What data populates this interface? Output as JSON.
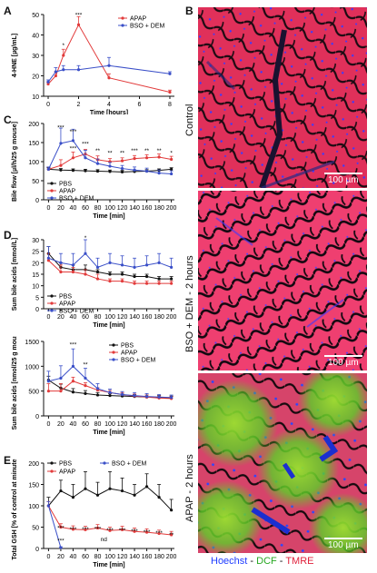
{
  "letters": {
    "A": "A",
    "B": "B",
    "C": "C",
    "D": "D",
    "E": "E"
  },
  "colors": {
    "pbs": "#111111",
    "apap": "#e23b3b",
    "bso": "#3a4fc8",
    "hoechst": "#1f3cff",
    "dcf": "#37c832",
    "tmre": "#ff2a4a"
  },
  "panel_b": {
    "labels": [
      "Control",
      "BSO + DEM - 2 hours",
      "APAP - 2 hours"
    ],
    "scale": "100 µm",
    "legend": {
      "hoechst": "Hoechst",
      "sep1": " - ",
      "dcf": "DCF",
      "sep2": " - ",
      "tmre": "TMRE"
    }
  },
  "chart_data": [
    {
      "id": "A",
      "type": "line",
      "xlabel": "Time [hours]",
      "ylabel": "4-HNE [µg/mL]",
      "xticks": [
        0,
        2,
        4,
        6,
        8
      ],
      "yticks": [
        10,
        20,
        30,
        40,
        50
      ],
      "xlim": [
        -0.3,
        8.3
      ],
      "ylim": [
        10,
        50
      ],
      "series": [
        {
          "name": "APAP",
          "color": "#e23b3b",
          "x": [
            0,
            0.5,
            1,
            2,
            4,
            8
          ],
          "y": [
            16,
            20,
            30,
            45,
            19,
            12
          ],
          "err": [
            1,
            2,
            3,
            4,
            2,
            1
          ]
        },
        {
          "name": "BSO + DEM",
          "color": "#3a4fc8",
          "x": [
            0,
            0.5,
            1,
            2,
            4,
            8
          ],
          "y": [
            17,
            22,
            23,
            23,
            25,
            21
          ],
          "err": [
            1,
            2,
            2,
            2,
            4,
            1
          ]
        }
      ],
      "annotations": [
        {
          "x": 2,
          "y": 49,
          "text": "***"
        },
        {
          "x": 1,
          "y": 34,
          "text": "*"
        }
      ]
    },
    {
      "id": "C",
      "type": "line",
      "xlabel": "Time [min]",
      "ylabel": "Bile flow [µl/h/25 g mouse]",
      "xticks": [
        0,
        20,
        40,
        60,
        80,
        100,
        120,
        140,
        160,
        180,
        200
      ],
      "yticks": [
        0,
        50,
        100,
        150,
        200
      ],
      "xlim": [
        -8,
        205
      ],
      "ylim": [
        0,
        200
      ],
      "series": [
        {
          "name": "PBS",
          "color": "#111111",
          "x": [
            0,
            20,
            40,
            60,
            80,
            100,
            120,
            140,
            160,
            180,
            200
          ],
          "y": [
            80,
            78,
            77,
            76,
            75,
            74,
            73,
            74,
            75,
            77,
            80
          ],
          "err": [
            4,
            4,
            4,
            4,
            4,
            4,
            4,
            4,
            4,
            4,
            4
          ]
        },
        {
          "name": "APAP",
          "color": "#e23b3b",
          "x": [
            0,
            20,
            40,
            60,
            80,
            100,
            120,
            140,
            160,
            180,
            200
          ],
          "y": [
            80,
            90,
            110,
            120,
            105,
            100,
            102,
            108,
            110,
            112,
            106
          ],
          "err": [
            6,
            15,
            15,
            12,
            10,
            8,
            8,
            8,
            8,
            8,
            8
          ]
        },
        {
          "name": "BSO + DEM",
          "color": "#3a4fc8",
          "x": [
            0,
            20,
            40,
            60,
            80,
            100,
            120,
            140,
            160,
            180,
            200
          ],
          "y": [
            80,
            148,
            155,
            110,
            95,
            88,
            82,
            78,
            75,
            70,
            68
          ],
          "err": [
            6,
            40,
            30,
            20,
            12,
            10,
            8,
            8,
            8,
            8,
            8
          ]
        }
      ],
      "annotations": [
        {
          "x": 20,
          "y": 185,
          "text": "***"
        },
        {
          "x": 40,
          "y": 174,
          "text": "***"
        },
        {
          "x": 60,
          "y": 142,
          "text": "***"
        },
        {
          "x": 40,
          "y": 130,
          "text": "***"
        },
        {
          "x": 80,
          "y": 124,
          "text": "**"
        },
        {
          "x": 100,
          "y": 118,
          "text": "**"
        },
        {
          "x": 120,
          "y": 118,
          "text": "**"
        },
        {
          "x": 140,
          "y": 124,
          "text": "***"
        },
        {
          "x": 160,
          "y": 124,
          "text": "**"
        },
        {
          "x": 180,
          "y": 124,
          "text": "**"
        },
        {
          "x": 200,
          "y": 118,
          "text": "*"
        }
      ],
      "legend_items": [
        "PBS",
        "APAP",
        "BSO + DEM"
      ]
    },
    {
      "id": "D1",
      "type": "line",
      "xlabel": "Time [min]",
      "ylabel": "Sum bile acids [mmol/L]",
      "xticks": [
        0,
        20,
        40,
        60,
        80,
        100,
        120,
        140,
        160,
        180,
        200
      ],
      "yticks": [
        0,
        5,
        10,
        15,
        20,
        25,
        30
      ],
      "xlim": [
        -8,
        205
      ],
      "ylim": [
        0,
        30
      ],
      "series": [
        {
          "name": "PBS",
          "color": "#111111",
          "x": [
            0,
            20,
            40,
            60,
            80,
            100,
            120,
            140,
            160,
            180,
            200
          ],
          "y": [
            24,
            18,
            17,
            17,
            16,
            15,
            15,
            14,
            14,
            13,
            13
          ],
          "err": [
            3,
            2,
            2,
            2,
            1,
            1,
            1,
            1,
            1,
            1,
            1
          ]
        },
        {
          "name": "APAP",
          "color": "#e23b3b",
          "x": [
            0,
            20,
            40,
            60,
            80,
            100,
            120,
            140,
            160,
            180,
            200
          ],
          "y": [
            21,
            16,
            16,
            15,
            13,
            12,
            12,
            11,
            11,
            11,
            11
          ],
          "err": [
            3,
            3,
            2,
            2,
            2,
            1,
            1,
            1,
            1,
            1,
            1
          ]
        },
        {
          "name": "BSO + DEM",
          "color": "#3a4fc8",
          "x": [
            0,
            20,
            40,
            60,
            80,
            100,
            120,
            140,
            160,
            180,
            200
          ],
          "y": [
            22,
            20,
            19,
            24,
            18,
            20,
            19,
            18,
            19,
            20,
            18
          ],
          "err": [
            5,
            4,
            5,
            6,
            4,
            4,
            4,
            4,
            4,
            4,
            4
          ]
        }
      ],
      "annotations": [
        {
          "x": 60,
          "y": 30,
          "text": "*"
        }
      ],
      "legend_items": [
        "PBS",
        "APAP",
        "BSO + DEM"
      ]
    },
    {
      "id": "D2",
      "type": "line",
      "xlabel": "Time [min]",
      "ylabel": "Sum bile acids [nmol/25 g mouse]",
      "xticks": [
        0,
        20,
        40,
        60,
        80,
        100,
        120,
        140,
        160,
        180,
        200
      ],
      "yticks": [
        0,
        500,
        1000,
        1500
      ],
      "xlim": [
        -8,
        205
      ],
      "ylim": [
        0,
        1500
      ],
      "series": [
        {
          "name": "PBS",
          "color": "#111111",
          "x": [
            0,
            20,
            40,
            60,
            80,
            100,
            120,
            140,
            160,
            180,
            200
          ],
          "y": [
            720,
            560,
            480,
            450,
            420,
            410,
            400,
            390,
            380,
            370,
            360
          ],
          "err": [
            80,
            80,
            70,
            60,
            50,
            40,
            40,
            40,
            40,
            40,
            40
          ]
        },
        {
          "name": "APAP",
          "color": "#e23b3b",
          "x": [
            0,
            20,
            40,
            60,
            80,
            100,
            120,
            140,
            160,
            180,
            200
          ],
          "y": [
            500,
            500,
            700,
            610,
            520,
            470,
            430,
            400,
            380,
            360,
            350
          ],
          "err": [
            150,
            150,
            80,
            60,
            50,
            40,
            40,
            40,
            40,
            40,
            40
          ]
        },
        {
          "name": "BSO + DEM",
          "color": "#3a4fc8",
          "x": [
            0,
            20,
            40,
            60,
            80,
            100,
            120,
            140,
            160,
            180,
            200
          ],
          "y": [
            700,
            760,
            1000,
            760,
            550,
            470,
            430,
            410,
            390,
            380,
            370
          ],
          "err": [
            200,
            250,
            350,
            200,
            100,
            70,
            60,
            60,
            60,
            50,
            50
          ]
        }
      ],
      "annotations": [
        {
          "x": 40,
          "y": 1400,
          "text": "***"
        },
        {
          "x": 60,
          "y": 1000,
          "text": "**"
        }
      ],
      "legend_items": [
        "PBS",
        "APAP",
        "BSO + DEM"
      ]
    },
    {
      "id": "E",
      "type": "line",
      "xlabel": "Time [min]",
      "ylabel": "Total GSH [% of control at minute 0]",
      "xticks": [
        0,
        20,
        40,
        60,
        80,
        100,
        120,
        140,
        160,
        180,
        200
      ],
      "yticks": [
        0,
        50,
        100,
        150,
        200
      ],
      "xlim": [
        -8,
        205
      ],
      "ylim": [
        0,
        200
      ],
      "series": [
        {
          "name": "PBS",
          "color": "#111111",
          "x": [
            0,
            20,
            40,
            60,
            80,
            100,
            120,
            140,
            160,
            180,
            200
          ],
          "y": [
            100,
            135,
            120,
            140,
            125,
            140,
            135,
            125,
            145,
            120,
            90
          ],
          "err": [
            20,
            25,
            30,
            40,
            30,
            40,
            30,
            25,
            30,
            30,
            25
          ]
        },
        {
          "name": "APAP",
          "color": "#e23b3b",
          "x": [
            0,
            20,
            40,
            60,
            80,
            100,
            120,
            140,
            160,
            180,
            200
          ],
          "y": [
            100,
            50,
            45,
            44,
            48,
            42,
            44,
            40,
            38,
            35,
            32
          ],
          "err": [
            10,
            8,
            8,
            8,
            8,
            8,
            8,
            8,
            8,
            8,
            8
          ]
        },
        {
          "name": "BSO + DEM",
          "color": "#3a4fc8",
          "x": [
            0,
            20
          ],
          "y": [
            100,
            2
          ],
          "err": [
            10,
            2
          ]
        }
      ],
      "annotations": [
        {
          "x": 20,
          "y": 44,
          "text": "***"
        },
        {
          "x": 40,
          "y": 40,
          "text": "***"
        },
        {
          "x": 60,
          "y": 40,
          "text": "***"
        },
        {
          "x": 80,
          "y": 42,
          "text": "***"
        },
        {
          "x": 100,
          "y": 38,
          "text": "***"
        },
        {
          "x": 120,
          "y": 38,
          "text": "***"
        },
        {
          "x": 140,
          "y": 36,
          "text": "***"
        },
        {
          "x": 160,
          "y": 34,
          "text": "***"
        },
        {
          "x": 180,
          "y": 32,
          "text": "***"
        },
        {
          "x": 200,
          "y": 28,
          "text": "**"
        },
        {
          "x": 20,
          "y": 14,
          "text": "***"
        },
        {
          "x": 90,
          "y": 17,
          "text": "nd"
        }
      ],
      "legend_items": [
        "PBS",
        "APAP",
        "BSO + DEM"
      ]
    }
  ]
}
